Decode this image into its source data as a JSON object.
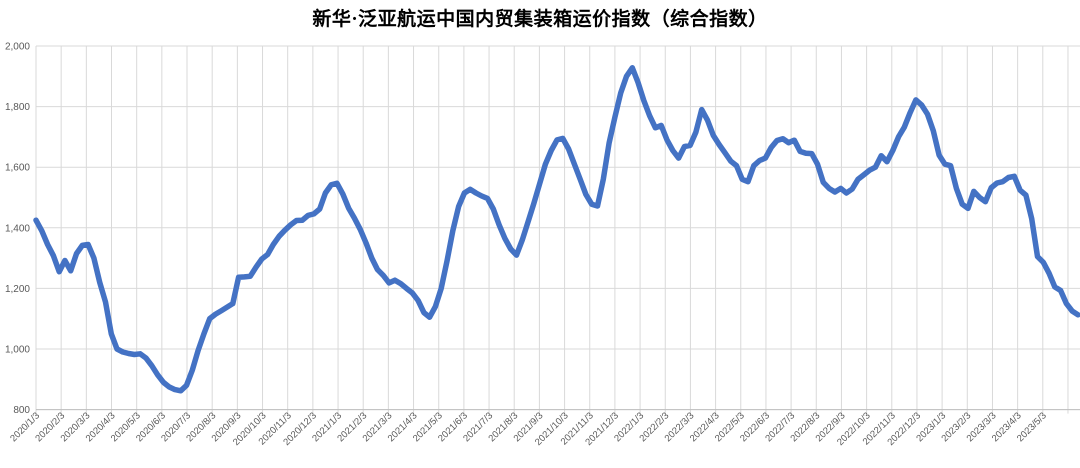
{
  "chart_data": {
    "type": "line",
    "title": "新华·泛亚航运中国内贸集装箱运价指数（综合指数）",
    "series_name": "综合指数",
    "x_frequency": "weekly",
    "legend": "none",
    "grid": "both",
    "line_color": "#4472C4",
    "gridline_color": "#D9D9D9",
    "axis_line_color": "#BFBFBF",
    "tick_label_color": "#595959",
    "title_color": "#000000",
    "background_color": "#FFFFFF",
    "ylim": [
      800,
      2000
    ],
    "y_ticks": [
      800,
      1000,
      1200,
      1400,
      1600,
      1800,
      2000
    ],
    "y_tick_labels": [
      "800",
      "1,000",
      "1,200",
      "1,400",
      "1,600",
      "1,800",
      "2,000"
    ],
    "x_tick_labels": [
      "2020/1/3",
      "2020/2/3",
      "2020/3/3",
      "2020/4/3",
      "2020/5/3",
      "2020/6/3",
      "2020/7/3",
      "2020/8/3",
      "2020/9/3",
      "2020/10/3",
      "2020/11/3",
      "2020/12/3",
      "2021/1/3",
      "2021/2/3",
      "2021/3/3",
      "2021/4/3",
      "2021/5/3",
      "2021/6/3",
      "2021/7/3",
      "2021/8/3",
      "2021/9/3",
      "2021/10/3",
      "2021/11/3",
      "2021/12/3",
      "2022/1/3",
      "2022/2/3",
      "2022/3/3",
      "2022/4/3",
      "2022/5/3",
      "2022/6/3",
      "2022/7/3",
      "2022/8/3",
      "2022/9/3",
      "2022/10/3",
      "2022/11/3",
      "2022/12/3",
      "2023/1/3",
      "2023/2/3",
      "2023/3/3",
      "2023/4/3",
      "2023/5/3"
    ],
    "values": [
      1425,
      1390,
      1345,
      1308,
      1255,
      1292,
      1258,
      1315,
      1342,
      1345,
      1300,
      1220,
      1155,
      1050,
      1000,
      990,
      985,
      982,
      984,
      970,
      945,
      915,
      890,
      875,
      866,
      862,
      880,
      930,
      995,
      1050,
      1100,
      1115,
      1126,
      1138,
      1150,
      1237,
      1238,
      1240,
      1270,
      1297,
      1312,
      1345,
      1372,
      1392,
      1410,
      1424,
      1425,
      1441,
      1446,
      1462,
      1515,
      1542,
      1547,
      1512,
      1465,
      1432,
      1395,
      1350,
      1300,
      1262,
      1243,
      1218,
      1227,
      1216,
      1200,
      1185,
      1160,
      1120,
      1105,
      1140,
      1200,
      1290,
      1390,
      1470,
      1515,
      1527,
      1515,
      1505,
      1497,
      1462,
      1410,
      1365,
      1330,
      1310,
      1360,
      1420,
      1480,
      1545,
      1610,
      1655,
      1690,
      1695,
      1660,
      1610,
      1560,
      1510,
      1478,
      1472,
      1560,
      1680,
      1765,
      1845,
      1900,
      1928,
      1880,
      1820,
      1770,
      1730,
      1738,
      1690,
      1655,
      1630,
      1668,
      1672,
      1716,
      1790,
      1755,
      1705,
      1675,
      1648,
      1620,
      1605,
      1560,
      1552,
      1605,
      1622,
      1630,
      1665,
      1688,
      1694,
      1681,
      1689,
      1652,
      1646,
      1645,
      1610,
      1550,
      1530,
      1518,
      1530,
      1515,
      1528,
      1560,
      1575,
      1590,
      1600,
      1638,
      1618,
      1655,
      1700,
      1732,
      1780,
      1822,
      1805,
      1775,
      1720,
      1640,
      1610,
      1605,
      1530,
      1478,
      1464,
      1520,
      1500,
      1486,
      1532,
      1548,
      1552,
      1566,
      1570,
      1524,
      1508,
      1430,
      1305,
      1286,
      1250,
      1205,
      1193,
      1150,
      1125,
      1113
    ]
  }
}
